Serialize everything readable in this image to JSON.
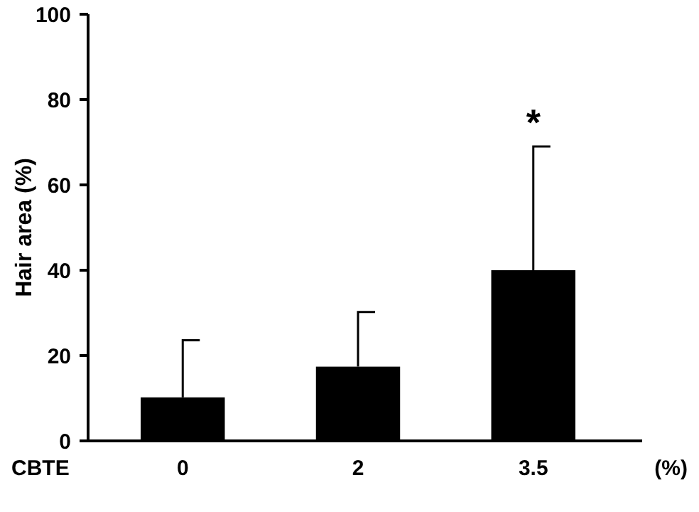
{
  "chart_data": {
    "type": "bar",
    "xlabel": "CBTE",
    "ylabel": "Hair area (%)",
    "categories": [
      "0",
      "2",
      "3.5"
    ],
    "values": [
      10.2,
      17.4,
      40
    ],
    "errors": [
      [
        10.2,
        23.6
      ],
      [
        17.4,
        30.2
      ],
      [
        40,
        69
      ]
    ],
    "color": "#000000",
    "ylim": [
      0,
      100
    ],
    "yticks": [
      0,
      20,
      40,
      60,
      80,
      100
    ],
    "grid": false,
    "annotations": [
      "*",
      "(%)"
    ]
  }
}
